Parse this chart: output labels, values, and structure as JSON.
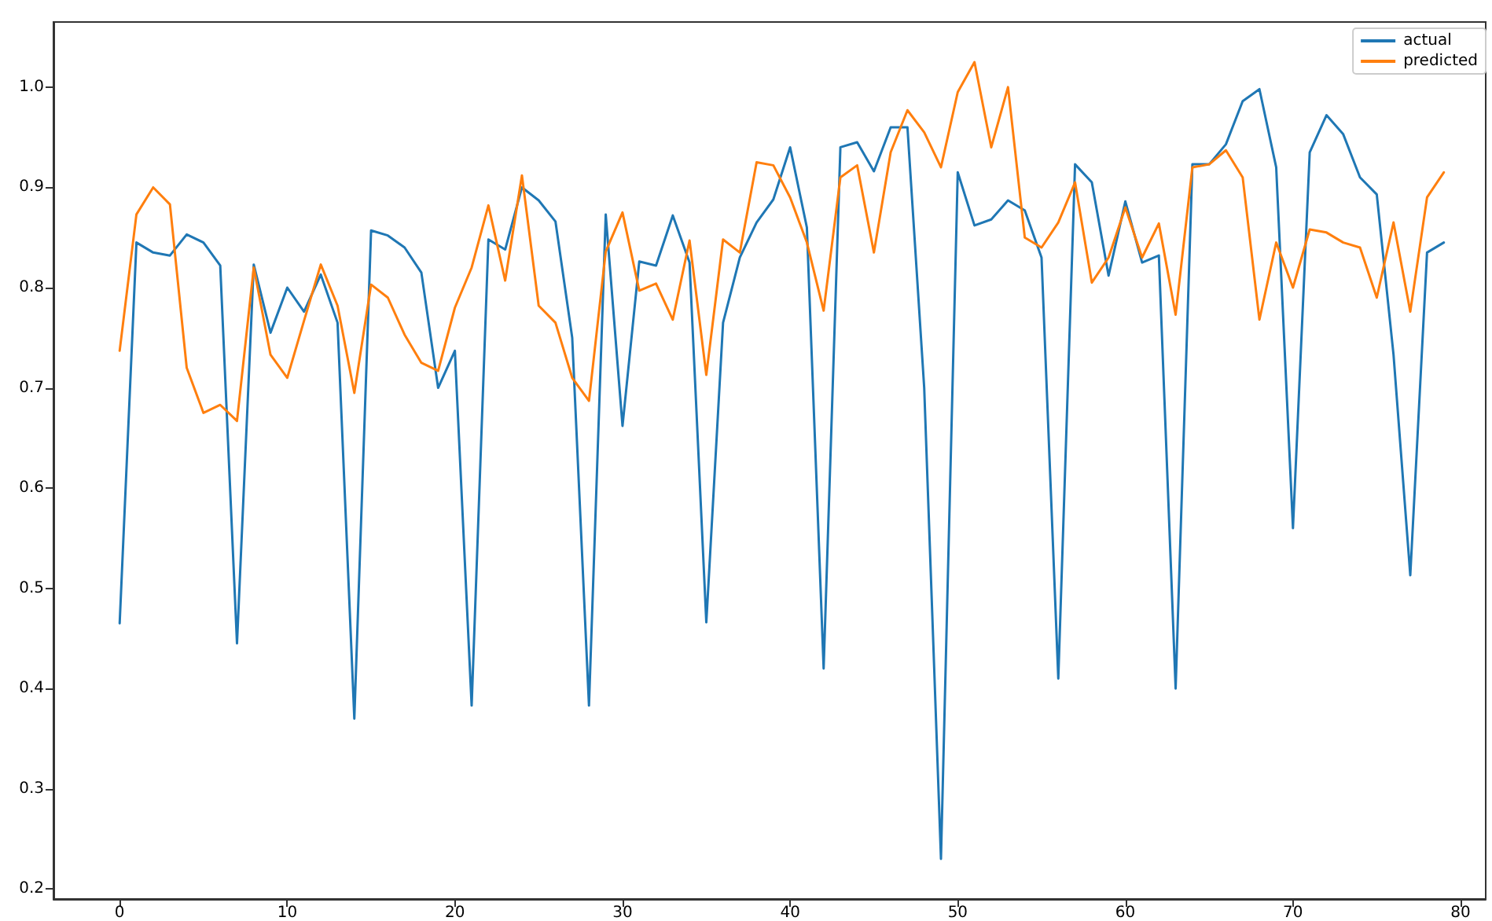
{
  "chart_data": {
    "type": "line",
    "x": [
      0,
      1,
      2,
      3,
      4,
      5,
      6,
      7,
      8,
      9,
      10,
      11,
      12,
      13,
      14,
      15,
      16,
      17,
      18,
      19,
      20,
      21,
      22,
      23,
      24,
      25,
      26,
      27,
      28,
      29,
      30,
      31,
      32,
      33,
      34,
      35,
      36,
      37,
      38,
      39,
      40,
      41,
      42,
      43,
      44,
      45,
      46,
      47,
      48,
      49,
      50,
      51,
      52,
      53,
      54,
      55,
      56,
      57,
      58,
      59,
      60,
      61,
      62,
      63,
      64,
      65,
      66,
      67,
      68,
      69,
      70,
      71,
      72,
      73,
      74,
      75,
      76,
      77,
      78,
      79
    ],
    "series": [
      {
        "name": "actual",
        "color": "#1f77b4",
        "values": [
          0.465,
          0.845,
          0.835,
          0.832,
          0.853,
          0.845,
          0.822,
          0.445,
          0.823,
          0.755,
          0.8,
          0.776,
          0.813,
          0.765,
          0.37,
          0.857,
          0.852,
          0.84,
          0.815,
          0.7,
          0.737,
          0.383,
          0.848,
          0.838,
          0.9,
          0.887,
          0.866,
          0.75,
          0.383,
          0.873,
          0.662,
          0.826,
          0.822,
          0.872,
          0.825,
          0.466,
          0.765,
          0.83,
          0.865,
          0.888,
          0.94,
          0.86,
          0.42,
          0.94,
          0.945,
          0.916,
          0.96,
          0.96,
          0.7,
          0.23,
          0.915,
          0.862,
          0.868,
          0.887,
          0.877,
          0.83,
          0.41,
          0.923,
          0.905,
          0.812,
          0.886,
          0.825,
          0.832,
          0.4,
          0.923,
          0.923,
          0.943,
          0.986,
          0.998,
          0.92,
          0.56,
          0.935,
          0.972,
          0.953,
          0.91,
          0.893,
          0.733,
          0.513,
          0.835,
          0.845
        ]
      },
      {
        "name": "predicted",
        "color": "#ff7f0e",
        "values": [
          0.737,
          0.873,
          0.9,
          0.883,
          0.72,
          0.675,
          0.683,
          0.667,
          0.82,
          0.733,
          0.71,
          0.767,
          0.823,
          0.782,
          0.695,
          0.803,
          0.79,
          0.753,
          0.725,
          0.717,
          0.78,
          0.82,
          0.882,
          0.807,
          0.912,
          0.782,
          0.765,
          0.71,
          0.687,
          0.836,
          0.875,
          0.797,
          0.804,
          0.768,
          0.847,
          0.713,
          0.848,
          0.835,
          0.925,
          0.922,
          0.89,
          0.845,
          0.777,
          0.91,
          0.922,
          0.835,
          0.935,
          0.977,
          0.955,
          0.92,
          0.995,
          1.025,
          0.94,
          1.0,
          0.85,
          0.84,
          0.865,
          0.905,
          0.805,
          0.83,
          0.88,
          0.83,
          0.864,
          0.773,
          0.92,
          0.923,
          0.937,
          0.91,
          0.768,
          0.845,
          0.8,
          0.858,
          0.855,
          0.845,
          0.84,
          0.79,
          0.865,
          0.776,
          0.89,
          0.915
        ]
      }
    ],
    "xlim": [
      -3.95,
      81.5
    ],
    "xticks": [
      0,
      10,
      20,
      30,
      40,
      50,
      60,
      70,
      80
    ],
    "ylim": [
      0.19,
      1.065
    ],
    "yticks": [
      0.2,
      0.3,
      0.4,
      0.5,
      0.6,
      0.7,
      0.8,
      0.9,
      {
        "value": 1,
        "label": "1.0"
      }
    ],
    "legend": "top right",
    "grid": false,
    "marker": "none",
    "line_style": "solid"
  }
}
